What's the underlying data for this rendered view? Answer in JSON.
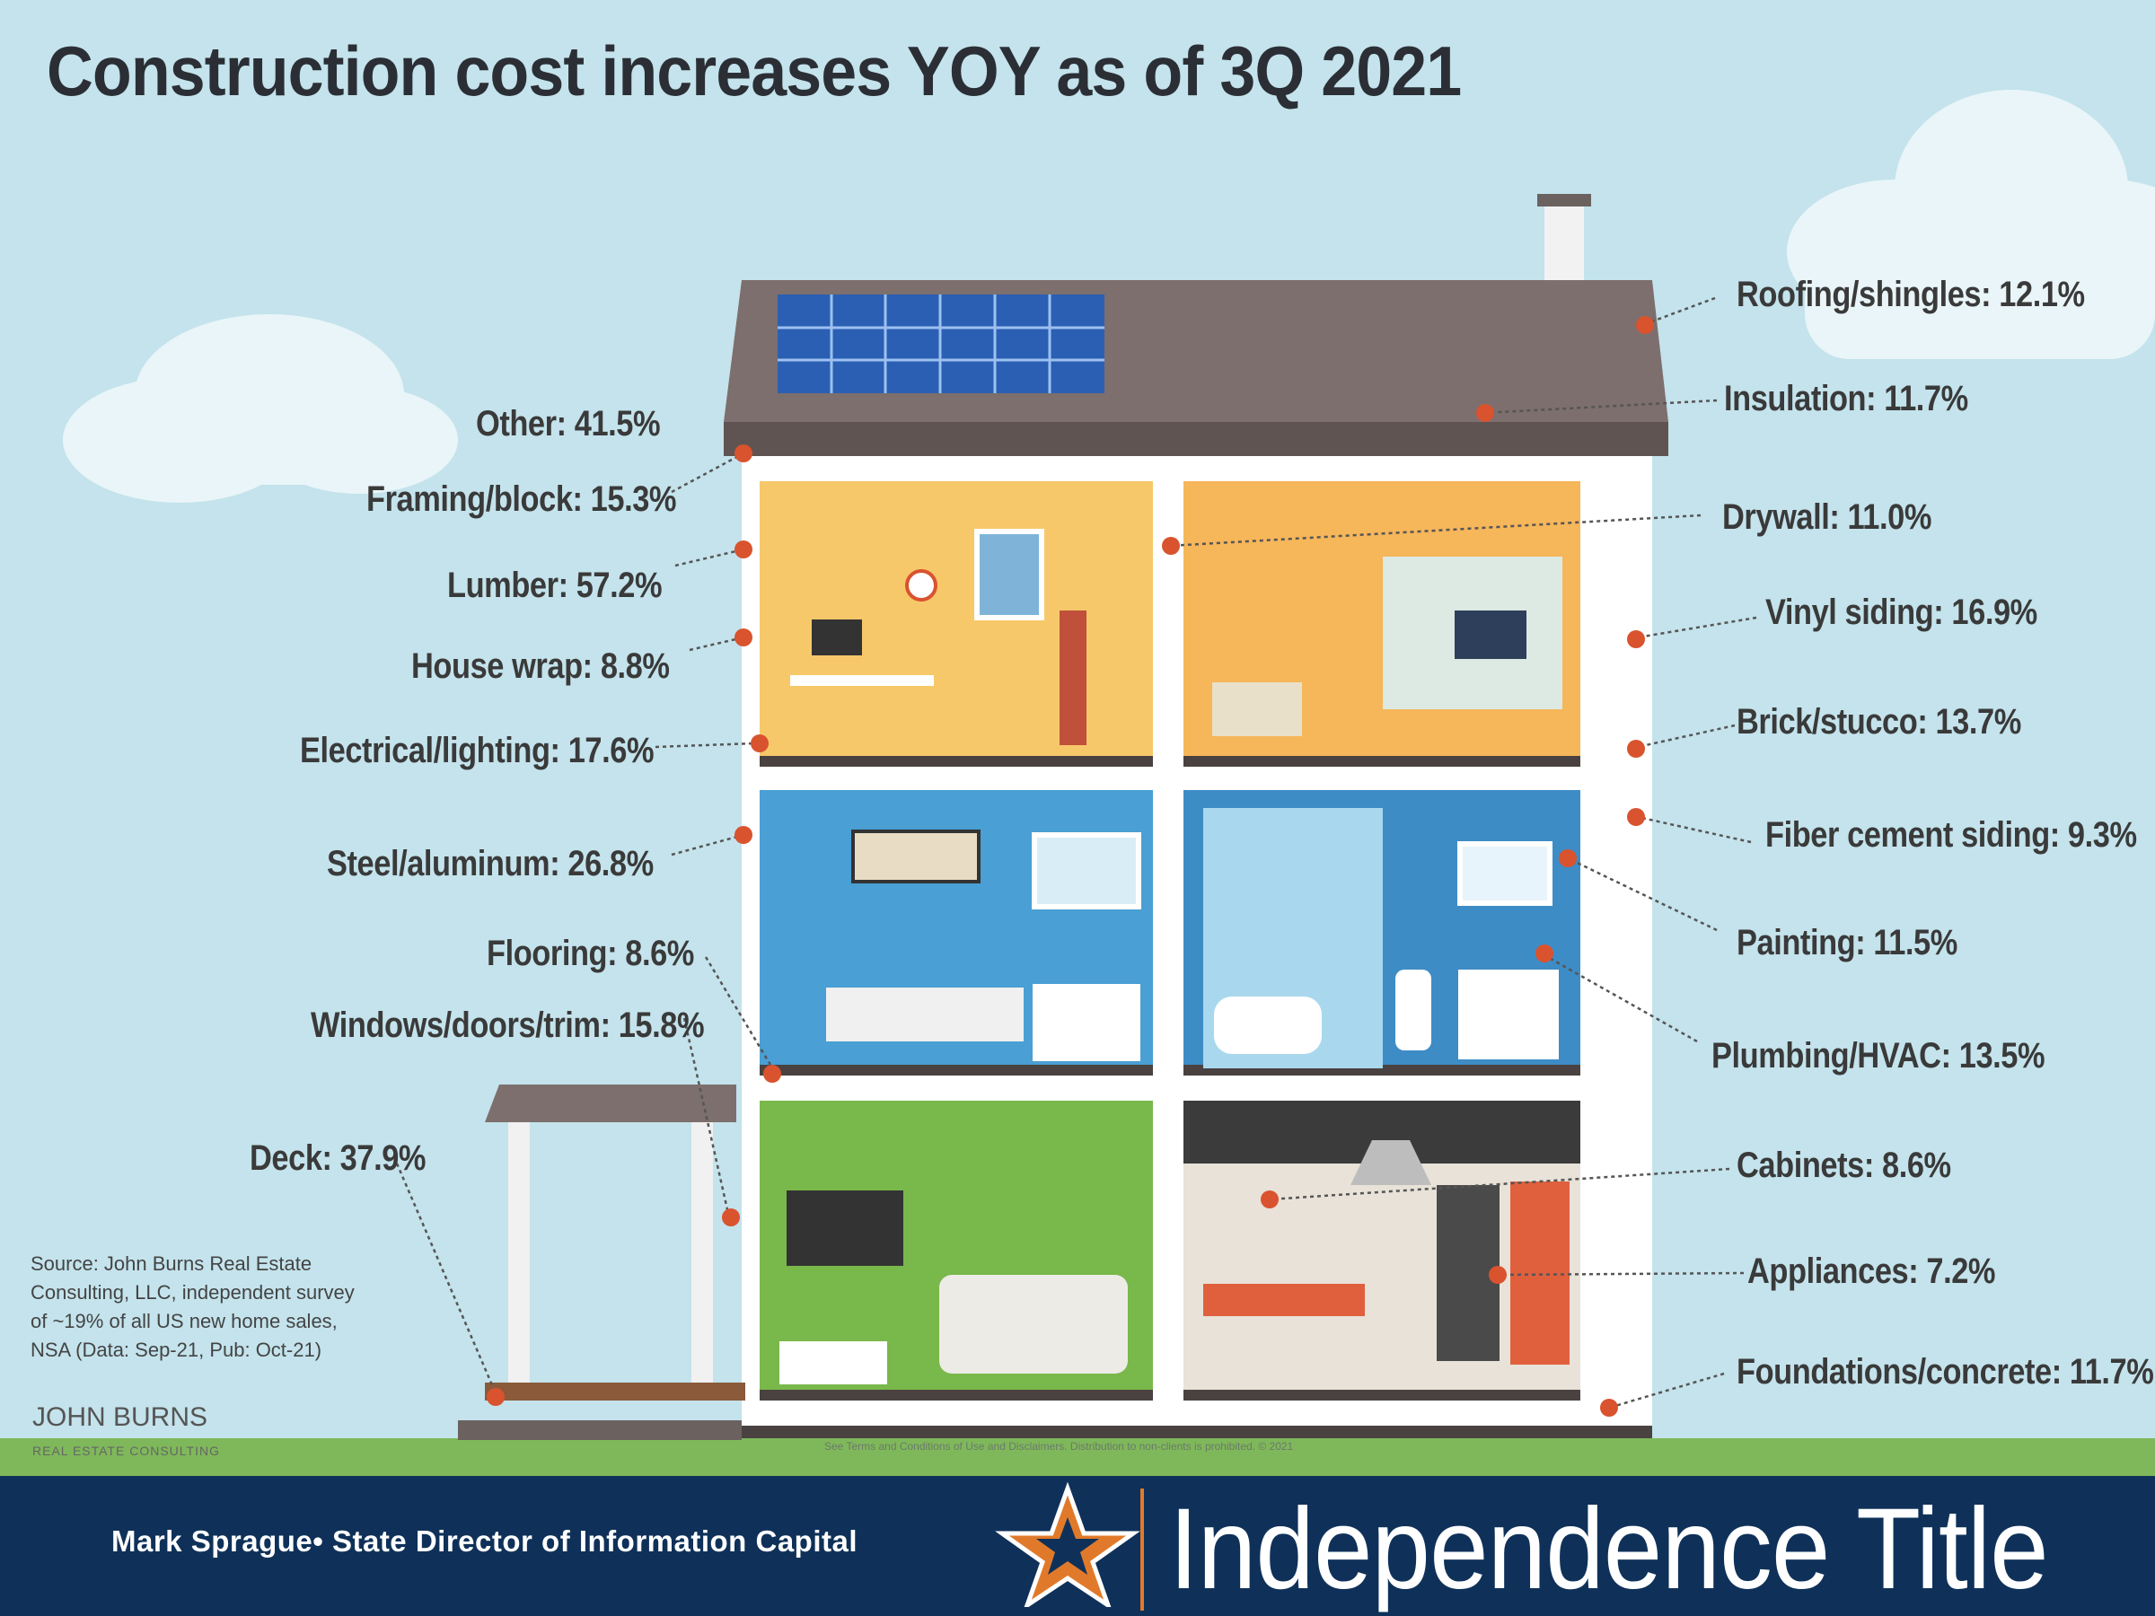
{
  "title": "Construction cost increases YOY as of 3Q 2021",
  "left_labels": [
    {
      "text": "Other: 41.5%"
    },
    {
      "text": "Framing/block: 15.3%"
    },
    {
      "text": "Lumber: 57.2%"
    },
    {
      "text": "House wrap: 8.8%"
    },
    {
      "text": "Electrical/lighting: 17.6%"
    },
    {
      "text": "Steel/aluminum: 26.8%"
    },
    {
      "text": "Flooring: 8.6%"
    },
    {
      "text": "Windows/doors/trim: 15.8%"
    },
    {
      "text": "Deck: 37.9%"
    }
  ],
  "right_labels": [
    {
      "text": "Roofing/shingles: 12.1%"
    },
    {
      "text": "Insulation: 11.7%"
    },
    {
      "text": "Drywall: 11.0%"
    },
    {
      "text": "Vinyl siding: 16.9%"
    },
    {
      "text": "Brick/stucco: 13.7%"
    },
    {
      "text": "Fiber cement siding: 9.3%"
    },
    {
      "text": "Painting: 11.5%"
    },
    {
      "text": "Plumbing/HVAC: 13.5%"
    },
    {
      "text": "Cabinets: 8.6%"
    },
    {
      "text": "Appliances: 7.2%"
    },
    {
      "text": "Foundations/concrete: 11.7%"
    }
  ],
  "source": "Source: John Burns Real Estate\nConsulting, LLC, independent survey\nof ~19%  of all US new home sales,\nNSA (Data: Sep-21, Pub: Oct-21)",
  "source_logo": {
    "line1": "JOHN  BURNS",
    "line2": "REAL ESTATE CONSULTING"
  },
  "disclaimer": "See Terms and Conditions of Use and Disclaimers. Distribution to non-clients is prohibited. © 2021",
  "footer": {
    "presenter": "Mark Sprague• State Director of Information Capital",
    "brand": "Independence Title"
  },
  "colors": {
    "sky": "#c4e3ec",
    "roof": "#7d6f6d",
    "leader_dot": "#d9532f",
    "footer_bg": "#0f3159",
    "star": "#e07a2a",
    "grass": "#7fb85a"
  }
}
